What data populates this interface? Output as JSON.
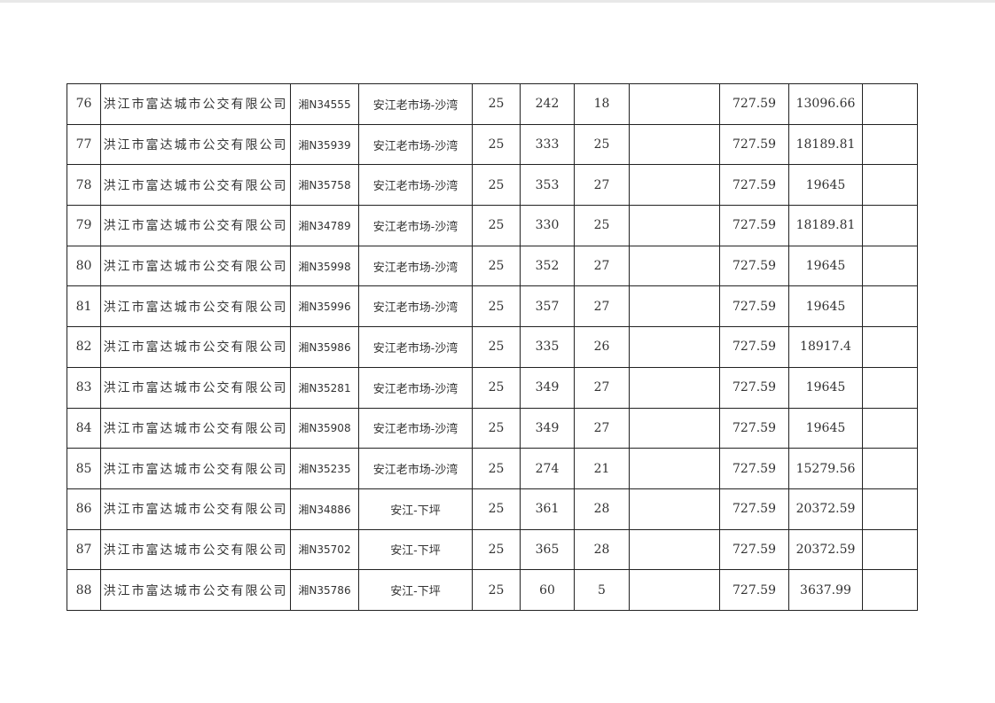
{
  "table": {
    "rows": [
      {
        "no": "76",
        "company": "洪江市富达城市公交有限公司",
        "plate": "湘N34555",
        "route": "安江老市场-沙湾",
        "c5": "25",
        "c6": "242",
        "c7": "18",
        "c8": "",
        "c9": "727.59",
        "c10": "13096.66",
        "c11": ""
      },
      {
        "no": "77",
        "company": "洪江市富达城市公交有限公司",
        "plate": "湘N35939",
        "route": "安江老市场-沙湾",
        "c5": "25",
        "c6": "333",
        "c7": "25",
        "c8": "",
        "c9": "727.59",
        "c10": "18189.81",
        "c11": ""
      },
      {
        "no": "78",
        "company": "洪江市富达城市公交有限公司",
        "plate": "湘N35758",
        "route": "安江老市场-沙湾",
        "c5": "25",
        "c6": "353",
        "c7": "27",
        "c8": "",
        "c9": "727.59",
        "c10": "19645",
        "c11": ""
      },
      {
        "no": "79",
        "company": "洪江市富达城市公交有限公司",
        "plate": "湘N34789",
        "route": "安江老市场-沙湾",
        "c5": "25",
        "c6": "330",
        "c7": "25",
        "c8": "",
        "c9": "727.59",
        "c10": "18189.81",
        "c11": ""
      },
      {
        "no": "80",
        "company": "洪江市富达城市公交有限公司",
        "plate": "湘N35998",
        "route": "安江老市场-沙湾",
        "c5": "25",
        "c6": "352",
        "c7": "27",
        "c8": "",
        "c9": "727.59",
        "c10": "19645",
        "c11": ""
      },
      {
        "no": "81",
        "company": "洪江市富达城市公交有限公司",
        "plate": "湘N35996",
        "route": "安江老市场-沙湾",
        "c5": "25",
        "c6": "357",
        "c7": "27",
        "c8": "",
        "c9": "727.59",
        "c10": "19645",
        "c11": ""
      },
      {
        "no": "82",
        "company": "洪江市富达城市公交有限公司",
        "plate": "湘N35986",
        "route": "安江老市场-沙湾",
        "c5": "25",
        "c6": "335",
        "c7": "26",
        "c8": "",
        "c9": "727.59",
        "c10": "18917.4",
        "c11": ""
      },
      {
        "no": "83",
        "company": "洪江市富达城市公交有限公司",
        "plate": "湘N35281",
        "route": "安江老市场-沙湾",
        "c5": "25",
        "c6": "349",
        "c7": "27",
        "c8": "",
        "c9": "727.59",
        "c10": "19645",
        "c11": ""
      },
      {
        "no": "84",
        "company": "洪江市富达城市公交有限公司",
        "plate": "湘N35908",
        "route": "安江老市场-沙湾",
        "c5": "25",
        "c6": "349",
        "c7": "27",
        "c8": "",
        "c9": "727.59",
        "c10": "19645",
        "c11": ""
      },
      {
        "no": "85",
        "company": "洪江市富达城市公交有限公司",
        "plate": "湘N35235",
        "route": "安江老市场-沙湾",
        "c5": "25",
        "c6": "274",
        "c7": "21",
        "c8": "",
        "c9": "727.59",
        "c10": "15279.56",
        "c11": ""
      },
      {
        "no": "86",
        "company": "洪江市富达城市公交有限公司",
        "plate": "湘N34886",
        "route": "安江-下坪",
        "c5": "25",
        "c6": "361",
        "c7": "28",
        "c8": "",
        "c9": "727.59",
        "c10": "20372.59",
        "c11": ""
      },
      {
        "no": "87",
        "company": "洪江市富达城市公交有限公司",
        "plate": "湘N35702",
        "route": "安江-下坪",
        "c5": "25",
        "c6": "365",
        "c7": "28",
        "c8": "",
        "c9": "727.59",
        "c10": "20372.59",
        "c11": ""
      },
      {
        "no": "88",
        "company": "洪江市富达城市公交有限公司",
        "plate": "湘N35786",
        "route": "安江-下坪",
        "c5": "25",
        "c6": "60",
        "c7": "5",
        "c8": "",
        "c9": "727.59",
        "c10": "3637.99",
        "c11": ""
      }
    ]
  }
}
